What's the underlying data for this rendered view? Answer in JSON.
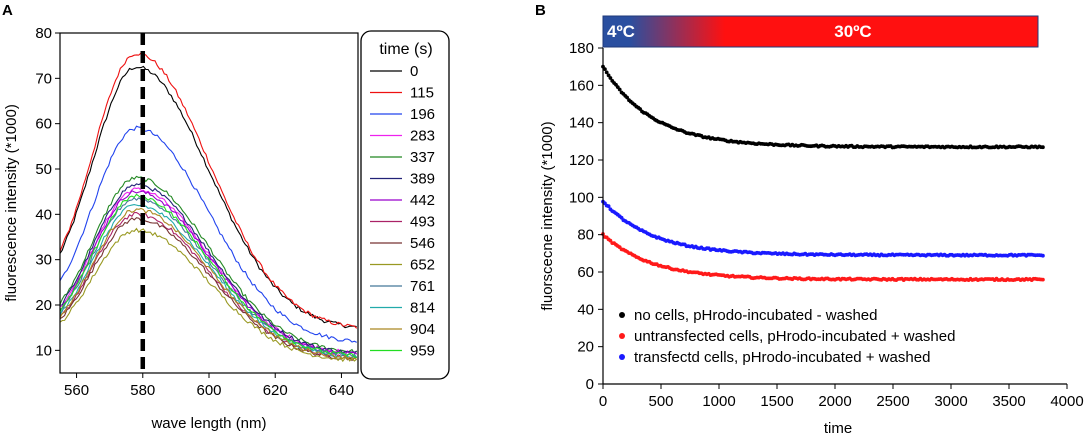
{
  "chart_data": [
    {
      "panel_label": "A",
      "type": "line",
      "xlabel": "wave length (nm)",
      "ylabel": "fluorescence intensity (*1000)",
      "xlim": [
        555,
        645
      ],
      "ylim": [
        5,
        80
      ],
      "xticks": [
        560,
        580,
        600,
        620,
        640
      ],
      "yticks": [
        10,
        20,
        30,
        40,
        50,
        60,
        70,
        80
      ],
      "marker_line_x": 580,
      "legend_title": "time (s)",
      "legend_position": "right",
      "series": [
        {
          "name": "0",
          "color": "#000000",
          "peak": 72.5,
          "base": 14.5
        },
        {
          "name": "115",
          "color": "#ee1111",
          "peak": 75.5,
          "base": 14.5
        },
        {
          "name": "196",
          "color": "#2244ee",
          "peak": 59.0,
          "base": 11.5
        },
        {
          "name": "283",
          "color": "#ee22ee",
          "peak": 45.5,
          "base": 9.0
        },
        {
          "name": "337",
          "color": "#228822",
          "peak": 48.0,
          "base": 9.3
        },
        {
          "name": "389",
          "color": "#222277",
          "peak": 46.5,
          "base": 9.0
        },
        {
          "name": "442",
          "color": "#9900cc",
          "peak": 45.0,
          "base": 8.7
        },
        {
          "name": "493",
          "color": "#aa2266",
          "peak": 40.0,
          "base": 8.0
        },
        {
          "name": "546",
          "color": "#773333",
          "peak": 39.0,
          "base": 7.8
        },
        {
          "name": "652",
          "color": "#999922",
          "peak": 36.5,
          "base": 7.5
        },
        {
          "name": "761",
          "color": "#447799",
          "peak": 43.5,
          "base": 8.4
        },
        {
          "name": "814",
          "color": "#22aaaa",
          "peak": 42.0,
          "base": 8.2
        },
        {
          "name": "904",
          "color": "#aa8822",
          "peak": 41.0,
          "base": 8.0
        },
        {
          "name": "959",
          "color": "#22dd22",
          "peak": 44.0,
          "base": 8.5
        }
      ]
    },
    {
      "panel_label": "B",
      "type": "scatter",
      "xlabel": "time",
      "ylabel": "fluorscecne intensity (*1000)",
      "xlim": [
        0,
        4000
      ],
      "ylim": [
        0,
        180
      ],
      "xticks": [
        0,
        500,
        1000,
        1500,
        2000,
        2500,
        3000,
        3500,
        4000
      ],
      "yticks": [
        0,
        20,
        40,
        60,
        80,
        100,
        120,
        140,
        160,
        180
      ],
      "temperature_band": {
        "cold_label": "4ºC",
        "warm_label": "30ºC",
        "cold_color": "#2a4fa0",
        "warm_color": "#ff1010"
      },
      "legend_position": "bottom-left",
      "series": [
        {
          "name": "no cells, pHrodo-incubated - washed",
          "color": "#000000",
          "start": 170,
          "end": 127,
          "x_end": 3800
        },
        {
          "name": "untransfected cells, pHrodo-incubated + washed",
          "color": "#ff1a1a",
          "start": 80,
          "end": 56,
          "x_end": 3800
        },
        {
          "name": "transfectd cells, pHrodo-incubated + washed",
          "color": "#1a1aff",
          "start": 98,
          "end": 69,
          "x_end": 3800
        }
      ]
    }
  ]
}
